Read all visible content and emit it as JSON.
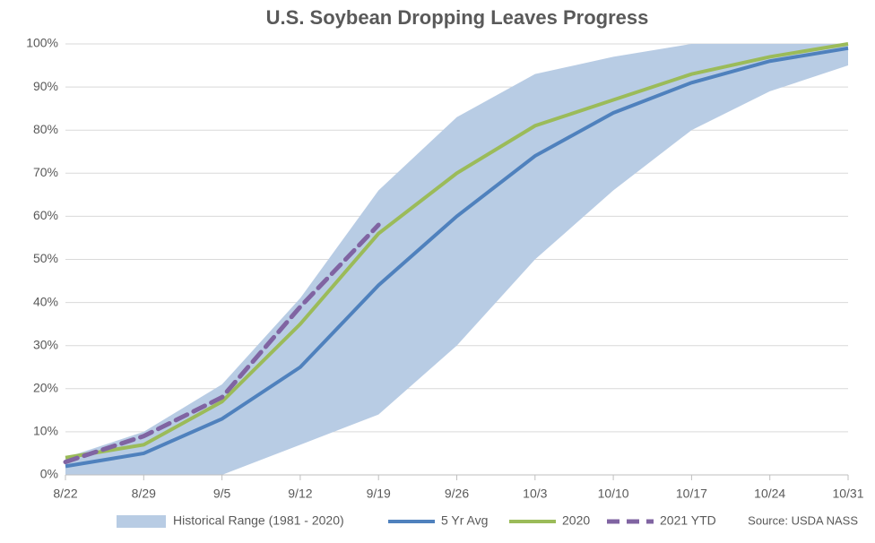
{
  "chart_data": {
    "type": "line",
    "title": "U.S. Soybean Dropping Leaves Progress",
    "categories": [
      "8/22",
      "8/29",
      "9/5",
      "9/12",
      "9/19",
      "9/26",
      "10/3",
      "10/10",
      "10/17",
      "10/24",
      "10/31"
    ],
    "band": {
      "name": "Historical Range (1981 - 2020)",
      "color": "#b8cce4",
      "low": [
        0,
        0,
        0,
        7,
        14,
        30,
        50,
        66,
        80,
        89,
        95
      ],
      "high": [
        4,
        10,
        21,
        41,
        66,
        83,
        93,
        97,
        100,
        100,
        100
      ]
    },
    "series": [
      {
        "name": "5 Yr Avg",
        "color": "#4f81bd",
        "dashed": false,
        "values": [
          2,
          5,
          13,
          25,
          44,
          60,
          74,
          84,
          91,
          96,
          99
        ]
      },
      {
        "name": "2020",
        "color": "#9bbb59",
        "dashed": false,
        "values": [
          4,
          7,
          17,
          35,
          56,
          70,
          81,
          87,
          93,
          97,
          100
        ]
      },
      {
        "name": "2021 YTD",
        "color": "#8064a2",
        "dashed": true,
        "values": [
          3,
          9,
          18,
          39,
          58,
          null,
          null,
          null,
          null,
          null,
          null
        ]
      }
    ],
    "ylim": [
      0,
      100
    ],
    "yticks": [
      {
        "value": 0,
        "label": "0%"
      },
      {
        "value": 10,
        "label": "10%"
      },
      {
        "value": 20,
        "label": "20%"
      },
      {
        "value": 30,
        "label": "30%"
      },
      {
        "value": 40,
        "label": "40%"
      },
      {
        "value": 50,
        "label": "50%"
      },
      {
        "value": 60,
        "label": "60%"
      },
      {
        "value": 70,
        "label": "70%"
      },
      {
        "value": 80,
        "label": "80%"
      },
      {
        "value": 90,
        "label": "90%"
      },
      {
        "value": 100,
        "label": "100%"
      }
    ],
    "grid": true,
    "source": "Source: USDA NASS"
  }
}
